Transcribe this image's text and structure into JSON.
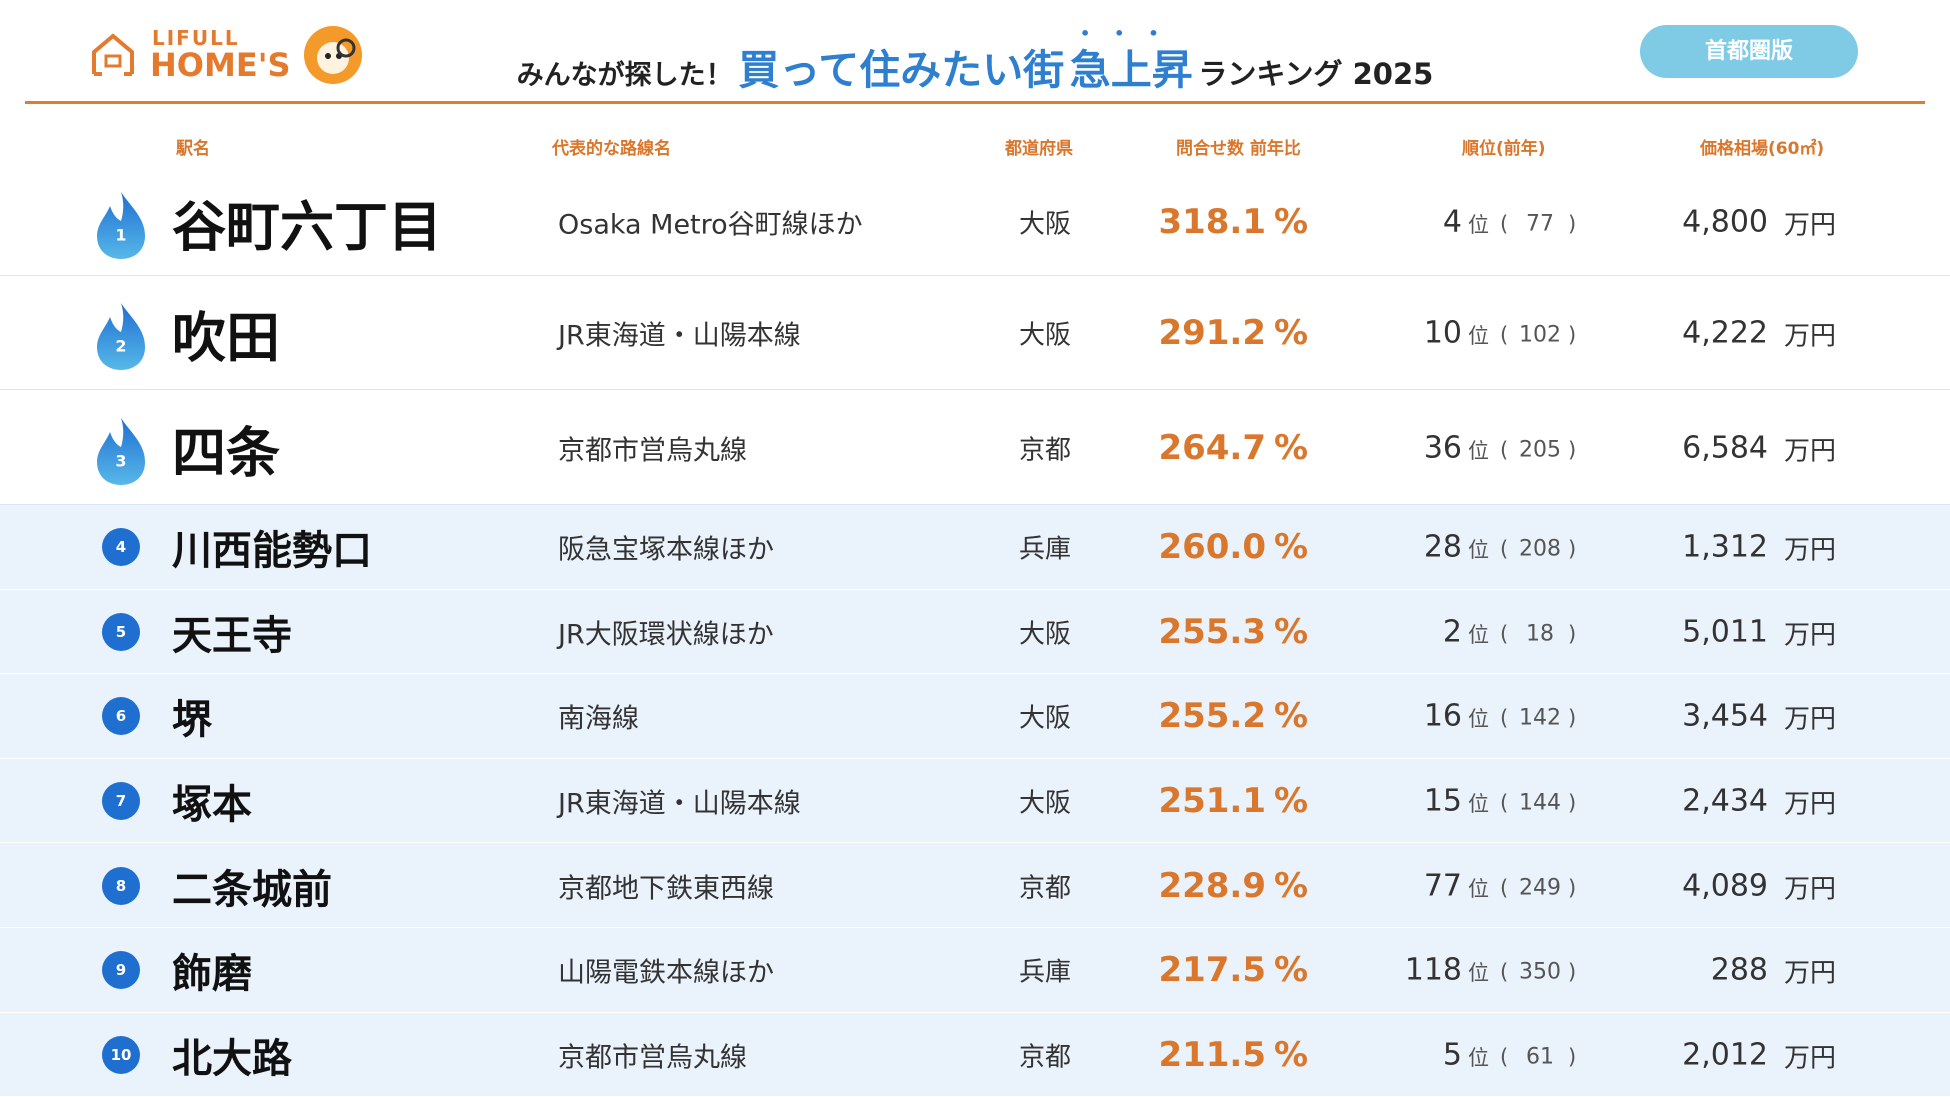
{
  "header": {
    "logo_top": "LIFULL",
    "logo_bottom": "HOME'S",
    "title_prefix": "みんなが探した！",
    "title_main": "買って住みたい街",
    "title_emph": "急上昇",
    "title_suffix": "ランキング 2025",
    "badge": "首都圏版"
  },
  "table": {
    "columns": [
      "駅名",
      "代表的な路線名",
      "都道府県",
      "問合せ数 前年比",
      "順位(前年)",
      "価格相場(60㎡)"
    ],
    "units": {
      "percent": "%",
      "rank": "位",
      "paren_open": "(",
      "paren_close": ")",
      "price": "万円"
    },
    "rows": [
      [
        "1",
        "谷町六丁目",
        "Osaka Metro谷町線ほか",
        "大阪",
        "318.1",
        "4",
        "77",
        "4,800"
      ],
      [
        "2",
        "吹田",
        "JR東海道・山陽本線",
        "大阪",
        "291.2",
        "10",
        "102",
        "4,222"
      ],
      [
        "3",
        "四条",
        "京都市営烏丸線",
        "京都",
        "264.7",
        "36",
        "205",
        "6,584"
      ],
      [
        "4",
        "川西能勢口",
        "阪急宝塚本線ほか",
        "兵庫",
        "260.0",
        "28",
        "208",
        "1,312"
      ],
      [
        "5",
        "天王寺",
        "JR大阪環状線ほか",
        "大阪",
        "255.3",
        "2",
        "18",
        "5,011"
      ],
      [
        "6",
        "堺",
        "南海線",
        "大阪",
        "255.2",
        "16",
        "142",
        "3,454"
      ],
      [
        "7",
        "塚本",
        "JR東海道・山陽本線",
        "大阪",
        "251.1",
        "15",
        "144",
        "2,434"
      ],
      [
        "8",
        "二条城前",
        "京都地下鉄東西線",
        "京都",
        "228.9",
        "77",
        "249",
        "4,089"
      ],
      [
        "9",
        "飾磨",
        "山陽電鉄本線ほか",
        "兵庫",
        "217.5",
        "118",
        "350",
        "288"
      ],
      [
        "10",
        "北大路",
        "京都市営烏丸線",
        "京都",
        "211.5",
        "5",
        "61",
        "2,012"
      ]
    ]
  }
}
